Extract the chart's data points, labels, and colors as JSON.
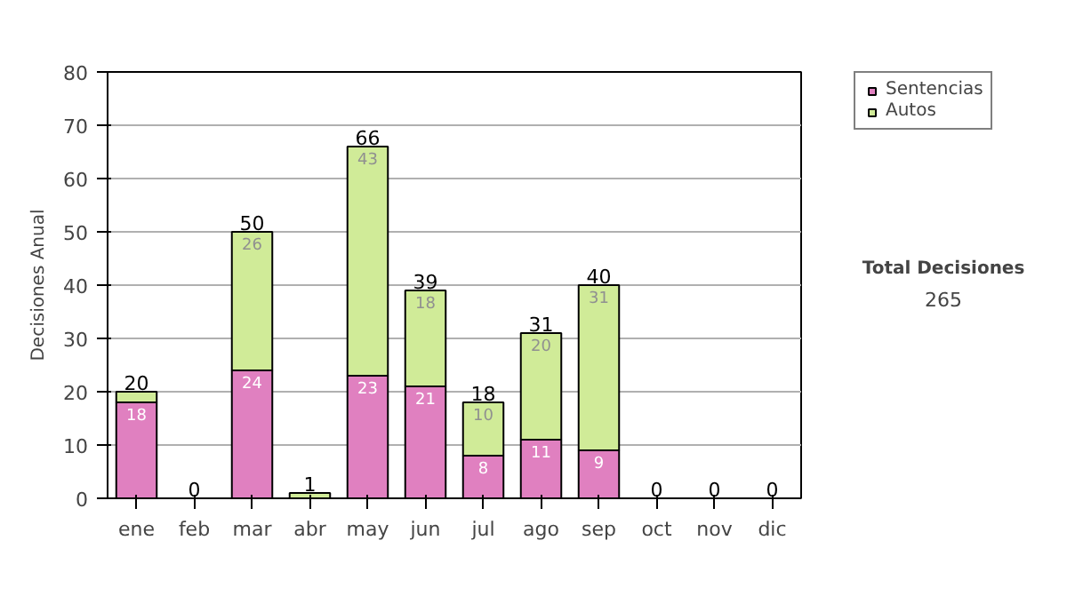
{
  "chart_data": {
    "type": "bar",
    "stacked": true,
    "ylabel": "Decisiones Anual",
    "categories": [
      "ene",
      "feb",
      "mar",
      "abr",
      "may",
      "jun",
      "jul",
      "ago",
      "sep",
      "oct",
      "nov",
      "dic"
    ],
    "series": [
      {
        "name": "Sentencias",
        "color": "#e080c0",
        "values": [
          18,
          0,
          24,
          0,
          23,
          21,
          8,
          11,
          9,
          0,
          0,
          0
        ],
        "value_labels": [
          "18",
          null,
          "24",
          null,
          "23",
          "21",
          "8",
          "11",
          "9",
          null,
          null,
          null
        ]
      },
      {
        "name": "Autos",
        "color": "#d0eb98",
        "values": [
          2,
          0,
          26,
          1,
          43,
          18,
          10,
          20,
          31,
          0,
          0,
          0
        ],
        "value_labels": [
          null,
          null,
          "26",
          null,
          "43",
          "18",
          "10",
          "20",
          "31",
          null,
          null,
          null
        ]
      }
    ],
    "totals": [
      "20",
      "0",
      "50",
      "1",
      "66",
      "39",
      "18",
      "31",
      "40",
      "0",
      "0",
      "0"
    ],
    "ylim": [
      0,
      80
    ],
    "yticks": [
      0,
      10,
      20,
      30,
      40,
      50,
      60,
      70,
      80
    ],
    "grid": "y",
    "legend": "right",
    "annotations": [
      "Total Decisiones",
      "265"
    ]
  }
}
